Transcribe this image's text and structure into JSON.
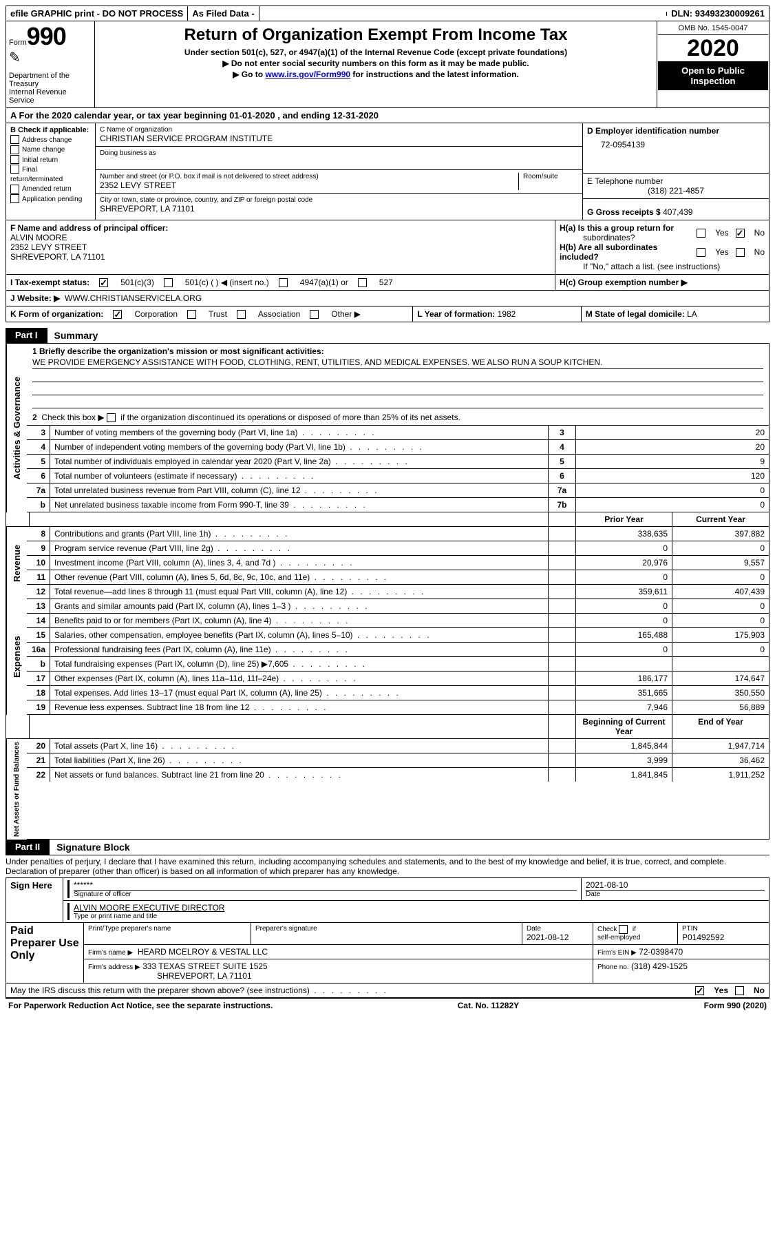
{
  "top_bar": {
    "efile": "efile GRAPHIC print - DO NOT PROCESS",
    "as_filed": "As Filed Data -",
    "dln_label": "DLN:",
    "dln": "93493230009261"
  },
  "header": {
    "form_label": "Form",
    "form_num": "990",
    "dept1": "Department of the",
    "dept2": "Treasury",
    "dept3": "Internal Revenue Service",
    "title": "Return of Organization Exempt From Income Tax",
    "sub1": "Under section 501(c), 527, or 4947(a)(1) of the Internal Revenue Code (except private foundations)",
    "sub2": "▶ Do not enter social security numbers on this form as it may be made public.",
    "sub3_pre": "▶ Go to ",
    "sub3_link": "www.irs.gov/Form990",
    "sub3_post": " for instructions and the latest information.",
    "omb": "OMB No. 1545-0047",
    "year": "2020",
    "open": "Open to Public Inspection"
  },
  "A": {
    "text_pre": "A   For the 2020 calendar year, or tax year beginning ",
    "begin": "01-01-2020",
    "mid": "   , and ending ",
    "end": "12-31-2020"
  },
  "B": {
    "header": "B Check if applicable:",
    "opts": [
      "Address change",
      "Name change",
      "Initial return",
      "Final return/terminated",
      "Amended return",
      "Application pending"
    ]
  },
  "C": {
    "name_label": "C Name of organization",
    "name": "CHRISTIAN SERVICE PROGRAM INSTITUTE",
    "dba_label": "Doing business as",
    "street_label": "Number and street (or P.O. box if mail is not delivered to street address)",
    "room_label": "Room/suite",
    "street": "2352 LEVY STREET",
    "city_label": "City or town, state or province, country, and ZIP or foreign postal code",
    "city": "SHREVEPORT, LA  71101"
  },
  "D": {
    "label": "D Employer identification number",
    "value": "72-0954139"
  },
  "E": {
    "label": "E Telephone number",
    "value": "(318) 221-4857"
  },
  "G": {
    "label": "G Gross receipts $",
    "value": "407,439"
  },
  "F": {
    "label": "F  Name and address of principal officer:",
    "l1": "ALVIN MOORE",
    "l2": "2352 LEVY STREET",
    "l3": "SHREVEPORT, LA  71101"
  },
  "H": {
    "a_label": "H(a)  Is this a group return for",
    "a_label2": "subordinates?",
    "b_label": "H(b)  Are all subordinates included?",
    "b_note": "If \"No,\" attach a list. (see instructions)",
    "c_label": "H(c)  Group exemption number ▶",
    "yes": "Yes",
    "no": "No"
  },
  "I": {
    "label": "I   Tax-exempt status:",
    "o1": "501(c)(3)",
    "o2": "501(c) (   ) ◀ (insert no.)",
    "o3": "4947(a)(1) or",
    "o4": "527"
  },
  "J": {
    "label": "J   Website: ▶",
    "value": "WWW.CHRISTIANSERVICELA.ORG"
  },
  "K": {
    "label": "K Form of organization:",
    "o1": "Corporation",
    "o2": "Trust",
    "o3": "Association",
    "o4": "Other ▶"
  },
  "L": {
    "label": "L Year of formation:",
    "value": "1982"
  },
  "M": {
    "label": "M State of legal domicile:",
    "value": "LA"
  },
  "partI": {
    "label": "Part I",
    "title": "Summary"
  },
  "summary": {
    "l1_label": "1  Briefly describe the organization's mission or most significant activities:",
    "l1_text": "WE PROVIDE EMERGENCY ASSISTANCE WITH FOOD, CLOTHING, RENT, UTILITIES, AND MEDICAL EXPENSES. WE ALSO RUN A SOUP KITCHEN.",
    "l2": "2   Check this box ▶       if the organization discontinued its operations or disposed of more than 25% of its net assets.",
    "rows37": [
      {
        "n": "3",
        "t": "Number of voting members of the governing body (Part VI, line 1a)",
        "c": "3",
        "v": "20"
      },
      {
        "n": "4",
        "t": "Number of independent voting members of the governing body (Part VI, line 1b)",
        "c": "4",
        "v": "20"
      },
      {
        "n": "5",
        "t": "Total number of individuals employed in calendar year 2020 (Part V, line 2a)",
        "c": "5",
        "v": "9"
      },
      {
        "n": "6",
        "t": "Total number of volunteers (estimate if necessary)",
        "c": "6",
        "v": "120"
      },
      {
        "n": "7a",
        "t": "Total unrelated business revenue from Part VIII, column (C), line 12",
        "c": "7a",
        "v": "0"
      },
      {
        "n": "b",
        "t": "Net unrelated business taxable income from Form 990-T, line 39",
        "c": "7b",
        "v": "0"
      }
    ],
    "hdr_prior": "Prior Year",
    "hdr_curr": "Current Year",
    "revenue_label": "Revenue",
    "expenses_label": "Expenses",
    "netassets_label": "Net Assets or Fund Balances",
    "activities_label": "Activities & Governance",
    "revenue_rows": [
      {
        "n": "8",
        "t": "Contributions and grants (Part VIII, line 1h)",
        "p": "338,635",
        "c": "397,882"
      },
      {
        "n": "9",
        "t": "Program service revenue (Part VIII, line 2g)",
        "p": "0",
        "c": "0"
      },
      {
        "n": "10",
        "t": "Investment income (Part VIII, column (A), lines 3, 4, and 7d )",
        "p": "20,976",
        "c": "9,557"
      },
      {
        "n": "11",
        "t": "Other revenue (Part VIII, column (A), lines 5, 6d, 8c, 9c, 10c, and 11e)",
        "p": "0",
        "c": "0"
      },
      {
        "n": "12",
        "t": "Total revenue—add lines 8 through 11 (must equal Part VIII, column (A), line 12)",
        "p": "359,611",
        "c": "407,439"
      }
    ],
    "expense_rows": [
      {
        "n": "13",
        "t": "Grants and similar amounts paid (Part IX, column (A), lines 1–3 )",
        "p": "0",
        "c": "0"
      },
      {
        "n": "14",
        "t": "Benefits paid to or for members (Part IX, column (A), line 4)",
        "p": "0",
        "c": "0"
      },
      {
        "n": "15",
        "t": "Salaries, other compensation, employee benefits (Part IX, column (A), lines 5–10)",
        "p": "165,488",
        "c": "175,903"
      },
      {
        "n": "16a",
        "t": "Professional fundraising fees (Part IX, column (A), line 11e)",
        "p": "0",
        "c": "0"
      },
      {
        "n": "b",
        "t": "Total fundraising expenses (Part IX, column (D), line 25) ▶7,605",
        "p": "",
        "c": ""
      },
      {
        "n": "17",
        "t": "Other expenses (Part IX, column (A), lines 11a–11d, 11f–24e)",
        "p": "186,177",
        "c": "174,647"
      },
      {
        "n": "18",
        "t": "Total expenses. Add lines 13–17 (must equal Part IX, column (A), line 25)",
        "p": "351,665",
        "c": "350,550"
      },
      {
        "n": "19",
        "t": "Revenue less expenses. Subtract line 18 from line 12",
        "p": "7,946",
        "c": "56,889"
      }
    ],
    "hdr_begin": "Beginning of Current Year",
    "hdr_end": "End of Year",
    "net_rows": [
      {
        "n": "20",
        "t": "Total assets (Part X, line 16)",
        "p": "1,845,844",
        "c": "1,947,714"
      },
      {
        "n": "21",
        "t": "Total liabilities (Part X, line 26)",
        "p": "3,999",
        "c": "36,462"
      },
      {
        "n": "22",
        "t": "Net assets or fund balances. Subtract line 21 from line 20",
        "p": "1,841,845",
        "c": "1,911,252"
      }
    ]
  },
  "partII": {
    "label": "Part II",
    "title": "Signature Block"
  },
  "perjury": "Under penalties of perjury, I declare that I have examined this return, including accompanying schedules and statements, and to the best of my knowledge and belief, it is true, correct, and complete. Declaration of preparer (other than officer) is based on all information of which preparer has any knowledge.",
  "sig": {
    "sign_here": "Sign Here",
    "stars": "******",
    "sig_officer": "Signature of officer",
    "date": "2021-08-10",
    "date_label": "Date",
    "name_title": "ALVIN MOORE EXECUTIVE DIRECTOR",
    "name_title_label": "Type or print name and title",
    "paid": "Paid Preparer Use Only",
    "print_label": "Print/Type preparer's name",
    "prep_sig": "Preparer's signature",
    "prep_date": "Date",
    "prep_date_v": "2021-08-12",
    "check_label": "Check        if self-employed",
    "ptin_label": "PTIN",
    "ptin": "P01492592",
    "firm_name_label": "Firm's name     ▶",
    "firm_name": "HEARD MCELROY & VESTAL LLC",
    "firm_ein_label": "Firm's EIN ▶",
    "firm_ein": "72-0398470",
    "firm_addr_label": "Firm's address ▶",
    "firm_addr1": "333 TEXAS STREET SUITE 1525",
    "firm_addr2": "SHREVEPORT, LA  71101",
    "phone_label": "Phone no.",
    "phone": "(318) 429-1525",
    "discuss": "May the IRS discuss this return with the preparer shown above? (see instructions)"
  },
  "footer": {
    "left": "For Paperwork Reduction Act Notice, see the separate instructions.",
    "mid": "Cat. No. 11282Y",
    "right_pre": "Form ",
    "right_b": "990",
    "right_post": " (2020)"
  }
}
